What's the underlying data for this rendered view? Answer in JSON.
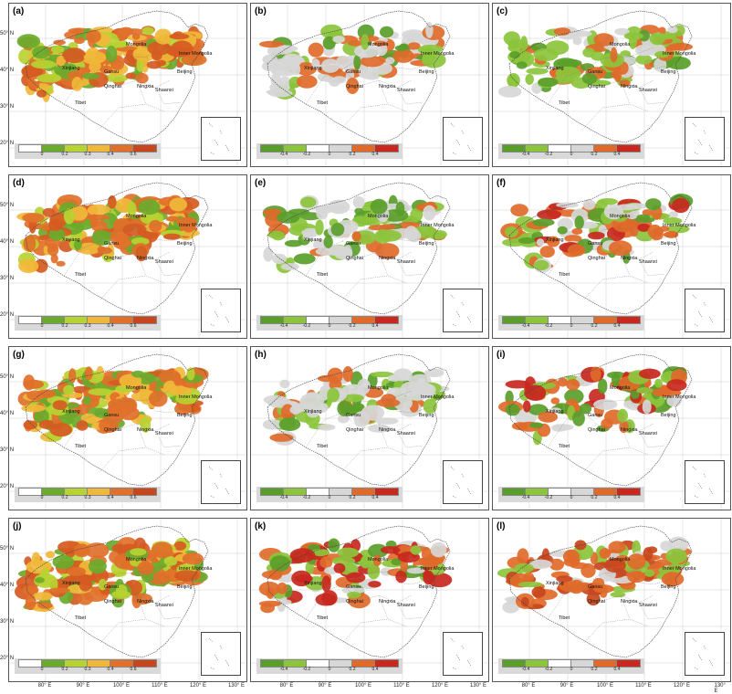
{
  "panels": [
    {
      "label": "(a)",
      "type": "seq"
    },
    {
      "label": "(b)",
      "type": "div_green"
    },
    {
      "label": "(c)",
      "type": "div_green_big"
    },
    {
      "label": "(d)",
      "type": "seq"
    },
    {
      "label": "(e)",
      "type": "div_green"
    },
    {
      "label": "(f)",
      "type": "div_mixed"
    },
    {
      "label": "(g)",
      "type": "seq"
    },
    {
      "label": "(h)",
      "type": "div_green"
    },
    {
      "label": "(i)",
      "type": "div_mixed"
    },
    {
      "label": "(j)",
      "type": "seq"
    },
    {
      "label": "(k)",
      "type": "div_mixed"
    },
    {
      "label": "(l)",
      "type": "div_orange"
    }
  ],
  "places": {
    "mongolia": "Mongolia",
    "inner_mongolia": "Inner Mongolia",
    "beijing": "Beijing",
    "xinjiang": "Xinjiang",
    "tibet": "Tibet",
    "gansu": "Gansu",
    "ningxia": "Ningxia",
    "qinghai": "Qinghai",
    "shaanxi": "Shaanxi"
  },
  "legend_seq": {
    "ticks": [
      "0",
      "0.2",
      "0.3",
      "0.4",
      "0.6"
    ],
    "colors": [
      "#ffffff",
      "#6aaa2c",
      "#b7d332",
      "#f0b83a",
      "#e0702a",
      "#c8461e"
    ]
  },
  "legend_div": {
    "ticks": [
      "-0.4",
      "-0.2",
      "0",
      "0.2",
      "0.4"
    ],
    "colors": [
      "#5a9e2a",
      "#8cc43c",
      "#ffffff",
      "#d7d7d7",
      "#e06a2a",
      "#c8281e"
    ]
  },
  "lat_labels": [
    "50° N",
    "40° N",
    "30° N",
    "20° N"
  ],
  "lon_labels": [
    "80° E",
    "90° E",
    "100° E",
    "110° E",
    "120° E",
    "130° E"
  ]
}
